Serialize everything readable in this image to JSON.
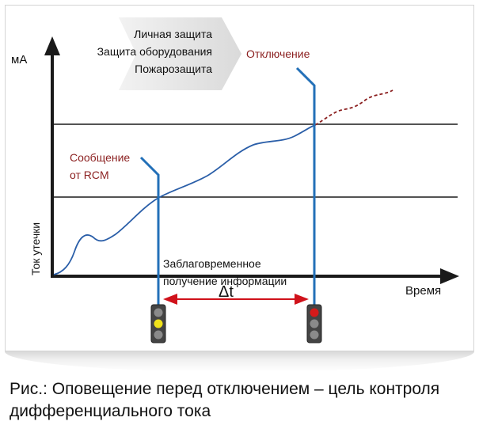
{
  "y_unit": "мА",
  "y_axis_label": "Ток утечки",
  "x_axis_label": "Время",
  "protection_levels": [
    "Личная защита",
    "Защита оборудования",
    "Пожарозащита"
  ],
  "trip_label": "Отключение",
  "rcm_label": [
    "Сообщение",
    "от RCM"
  ],
  "advance_info_label": [
    "Заблаговременное",
    "получение информации"
  ],
  "delta_label": "Δt",
  "caption": [
    "Рис.: Оповещение перед отключением – цель контроля",
    "дифференциального тока"
  ],
  "colors": {
    "axis": "#1a1a1a",
    "curve": "#2a5ea8",
    "probe": "#2370b8",
    "dark_red": "#8b1f1f",
    "arrow_red": "#d0121b",
    "lamp_yellow": "#f0e21a",
    "lamp_red": "#d61a1a",
    "lamp_off": "#8a8a8a"
  }
}
